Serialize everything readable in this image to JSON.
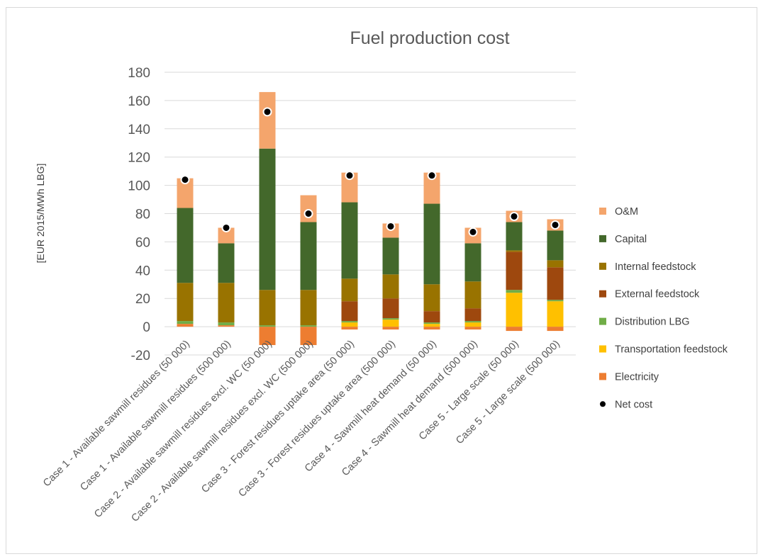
{
  "chart_data": {
    "type": "bar",
    "stacked": true,
    "title": "Fuel production cost",
    "xlabel": "",
    "ylabel": "[EUR 2015/MWh LBG]",
    "ylim": [
      -20,
      180
    ],
    "yticks": [
      -20,
      0,
      20,
      40,
      60,
      80,
      100,
      120,
      140,
      160,
      180
    ],
    "grid": true,
    "legend_position": "right",
    "categories": [
      "Case 1 - Available sawmill residues (50 000)",
      "Case 1 - Available sawmill residues (500 000)",
      "Case 2 - Available sawmill residues excl. WC (50 000)",
      "Case 2 - Available sawmill residues excl. WC (500 000)",
      "Case 3 - Forest residues uptake area (50 000)",
      "Case 3 - Forest residues uptake area (500 000)",
      "Case 4 - Sawmill heat demand (50 000)",
      "Case 4 - Sawmill heat demand (500 000)",
      "Case 5 - Large scale (50 000)",
      "Case 5 - Large scale (500 000)"
    ],
    "series": [
      {
        "name": "Electricity",
        "color": "#ED7D31",
        "values": [
          2,
          1,
          -13,
          -13,
          -2,
          -2,
          -2,
          -2,
          -3,
          -3
        ]
      },
      {
        "name": "Transportation feedstock",
        "color": "#FFC000",
        "values": [
          0,
          0,
          0,
          0,
          3,
          5,
          2,
          3,
          24,
          18
        ]
      },
      {
        "name": "Distribution LBG",
        "color": "#70AD47",
        "values": [
          2,
          2,
          1,
          1,
          1,
          1,
          1,
          1,
          2,
          1
        ]
      },
      {
        "name": "External feedstock",
        "color": "#9E480E",
        "values": [
          0,
          0,
          0,
          0,
          14,
          14,
          8,
          9,
          27,
          23
        ]
      },
      {
        "name": "Internal feedstock",
        "color": "#997300",
        "values": [
          27,
          28,
          25,
          25,
          16,
          17,
          19,
          19,
          1,
          5
        ]
      },
      {
        "name": "Capital",
        "color": "#43682B",
        "values": [
          53,
          28,
          100,
          48,
          54,
          26,
          57,
          27,
          20,
          21
        ]
      },
      {
        "name": "O&M",
        "color": "#F4A56C",
        "values": [
          21,
          11,
          40,
          19,
          21,
          10,
          22,
          11,
          8,
          8
        ]
      }
    ],
    "net_cost": {
      "name": "Net cost",
      "color": "#000000",
      "values": [
        104,
        70,
        152,
        80,
        107,
        71,
        107,
        67,
        78,
        72
      ]
    },
    "legend_order": [
      "O&M",
      "Capital",
      "Internal feedstock",
      "External feedstock",
      "Distribution LBG",
      "Transportation feedstock",
      "Electricity",
      "Net cost"
    ]
  }
}
